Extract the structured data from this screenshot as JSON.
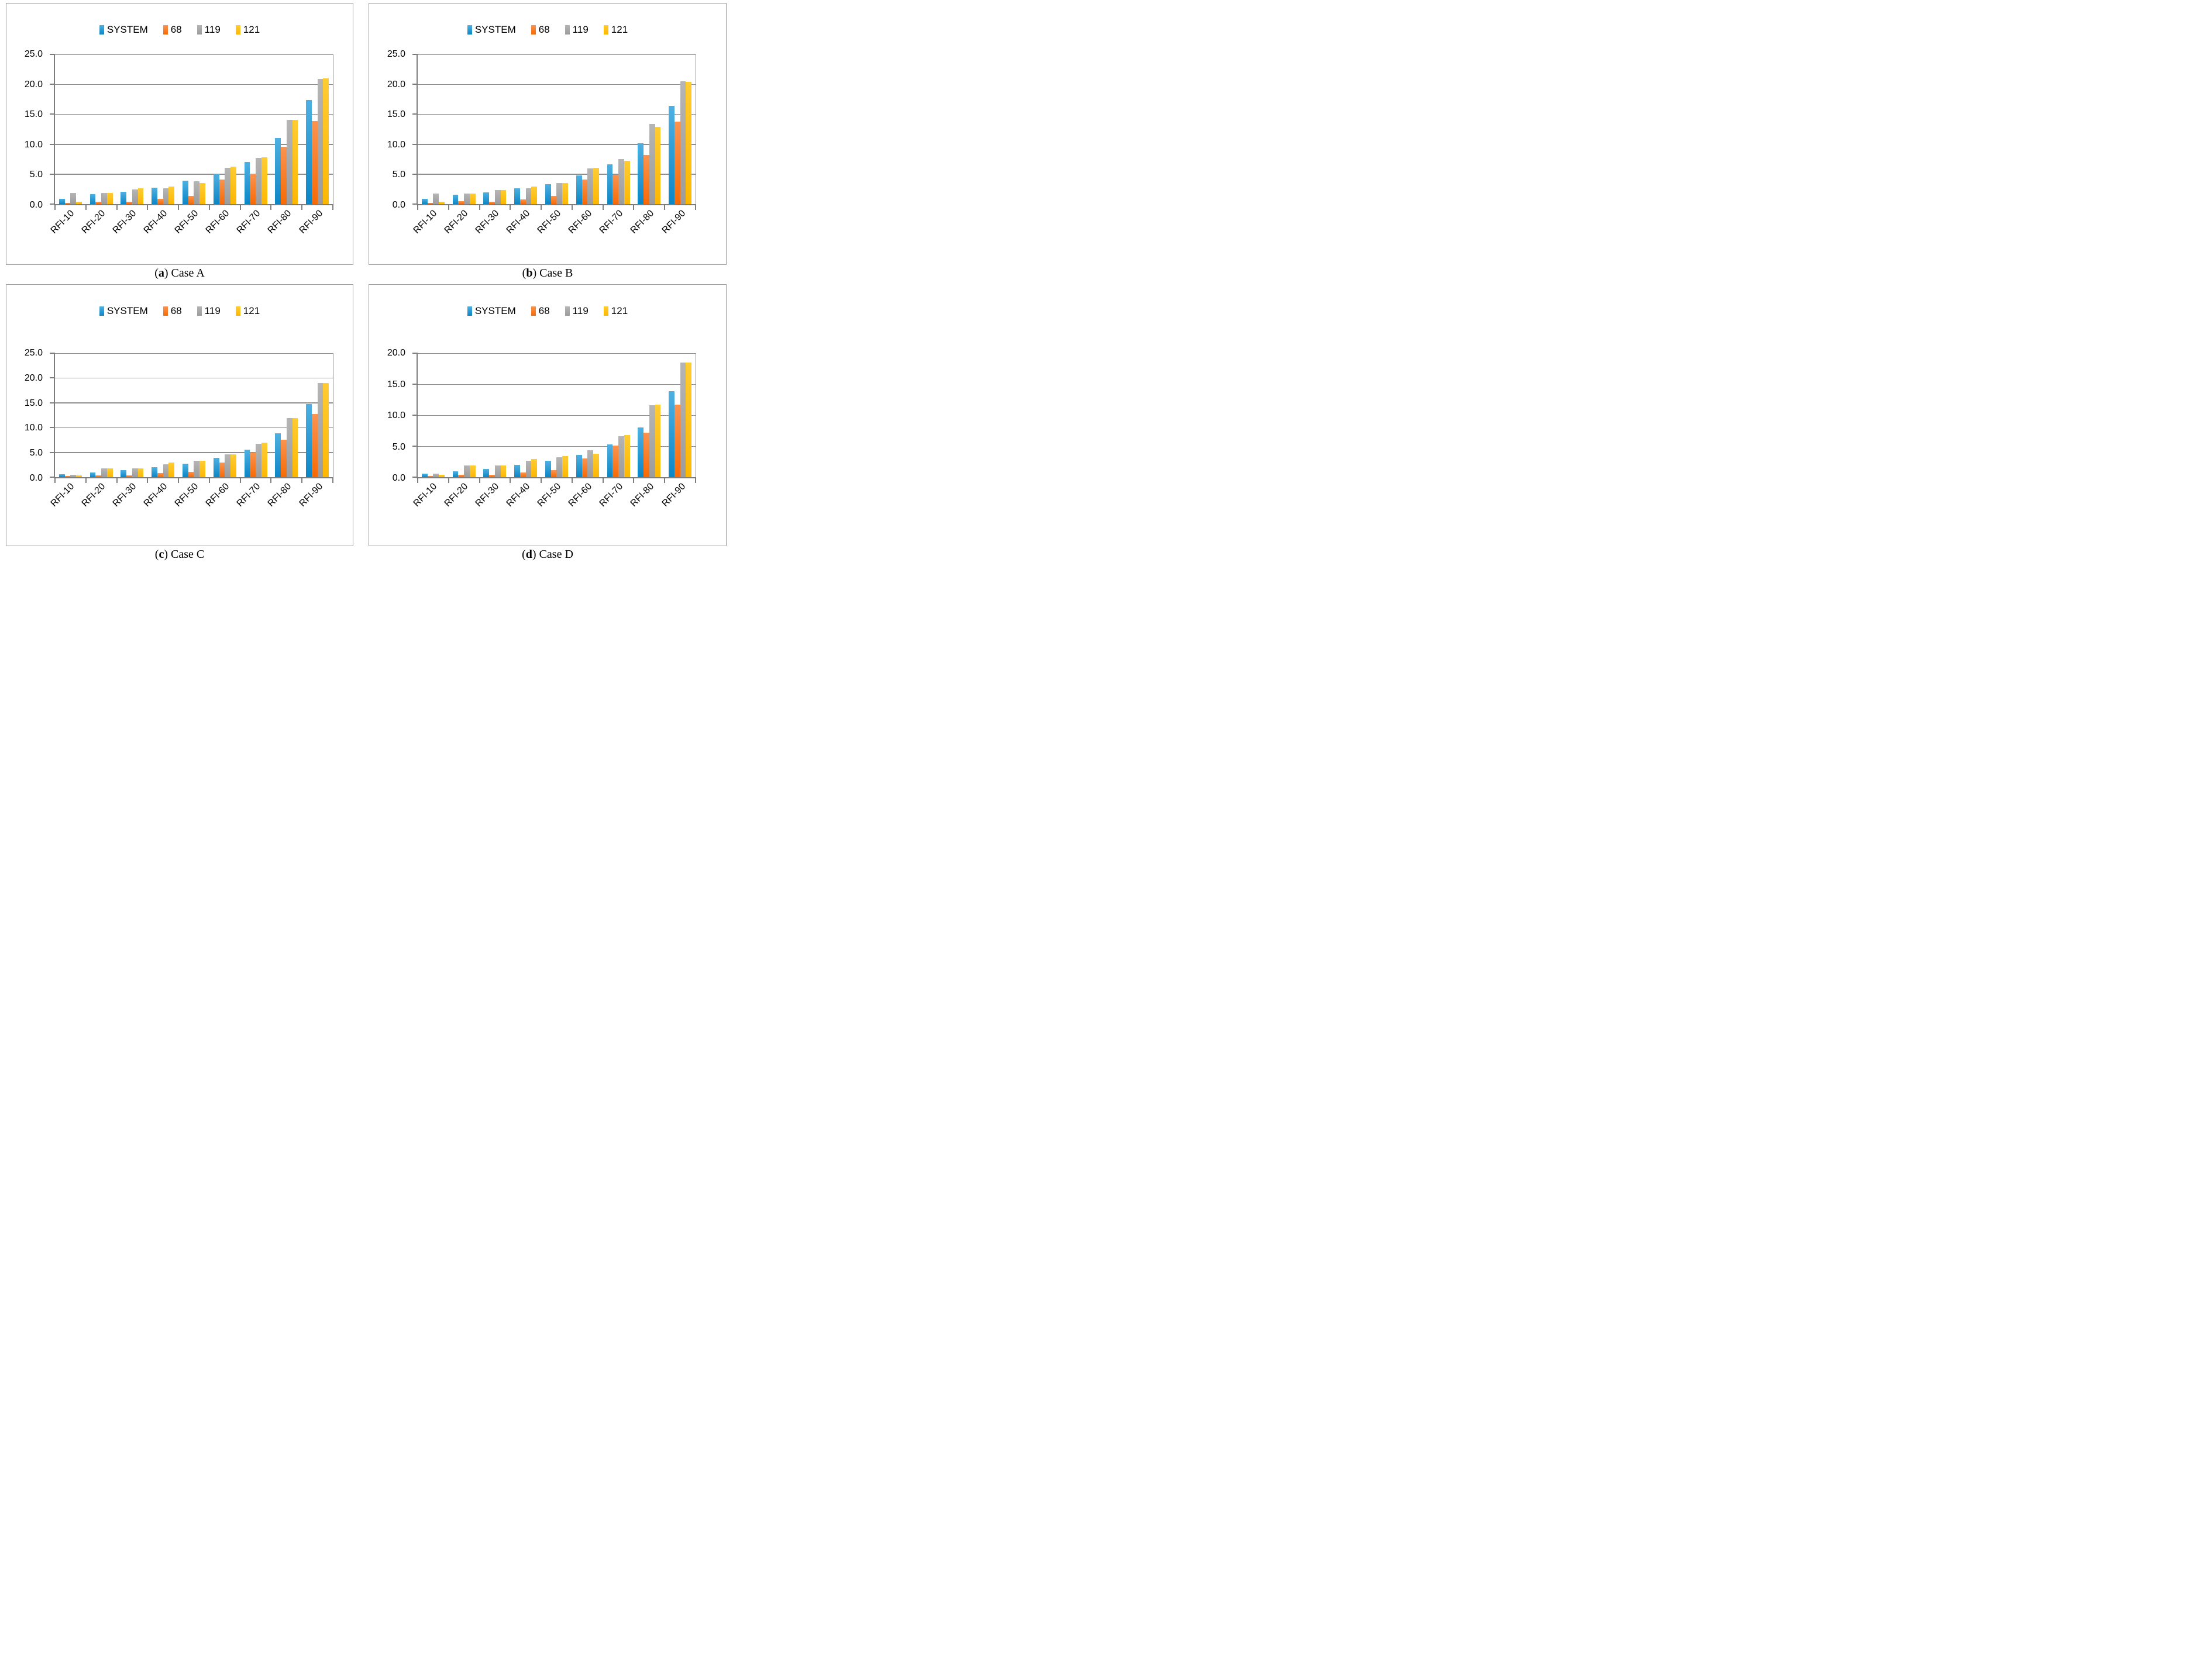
{
  "series_colors": {
    "SYSTEM": {
      "top": "#4fb0e1",
      "bottom": "#0c86c6"
    },
    "68": {
      "top": "#fa9450",
      "bottom": "#f76a05"
    },
    "119": {
      "top": "#b5b5b5",
      "bottom": "#9c9c9c"
    },
    "121": {
      "top": "#ffcc33",
      "bottom": "#fdb702"
    }
  },
  "style_colors": {
    "gridline": "#8f8f8f",
    "axis": "#7d7d7d",
    "panel_border": "#9e9e9e",
    "text": "#000000"
  },
  "chart_data": [
    {
      "type": "bar",
      "title": "(a) Case A",
      "caption_prefix": "(",
      "caption_letter": "a",
      "caption_rest": ") Case A",
      "xlabel": "",
      "ylabel": "",
      "ylim": [
        0,
        25
      ],
      "y_tick_step": 5,
      "y_tick_labels": [
        "25.0",
        "20.0",
        "15.0",
        "10.0",
        "5.0",
        "0.0"
      ],
      "grid": true,
      "legend_position": "top",
      "categories": [
        "RFI-10",
        "RFI-20",
        "RFI-30",
        "RFI-40",
        "RFI-50",
        "RFI-60",
        "RFI-70",
        "RFI-80",
        "RFI-90"
      ],
      "series": [
        {
          "name": "SYSTEM",
          "values": [
            0.9,
            1.7,
            2.1,
            2.7,
            3.9,
            5.1,
            7.0,
            11.0,
            17.4
          ]
        },
        {
          "name": "68",
          "values": [
            0.2,
            0.4,
            0.4,
            0.9,
            1.4,
            4.1,
            5.1,
            9.6,
            13.9
          ]
        },
        {
          "name": "119",
          "values": [
            1.9,
            1.9,
            2.4,
            2.6,
            3.8,
            6.1,
            7.7,
            14.1,
            20.9
          ]
        },
        {
          "name": "121",
          "values": [
            0.4,
            1.9,
            2.6,
            2.9,
            3.5,
            6.3,
            7.8,
            14.1,
            21.0
          ]
        }
      ]
    },
    {
      "type": "bar",
      "title": "(b) Case B",
      "caption_prefix": "(",
      "caption_letter": "b",
      "caption_rest": ") Case B",
      "xlabel": "",
      "ylabel": "",
      "ylim": [
        0,
        25
      ],
      "y_tick_step": 5,
      "y_tick_labels": [
        "25.0",
        "20.0",
        "15.0",
        "10.0",
        "5.0",
        "0.0"
      ],
      "grid": true,
      "legend_position": "top",
      "categories": [
        "RFI-10",
        "RFI-20",
        "RFI-30",
        "RFI-40",
        "RFI-50",
        "RFI-60",
        "RFI-70",
        "RFI-80",
        "RFI-90"
      ],
      "series": [
        {
          "name": "SYSTEM",
          "values": [
            0.9,
            1.6,
            2.0,
            2.6,
            3.3,
            4.8,
            6.6,
            10.2,
            16.4
          ]
        },
        {
          "name": "68",
          "values": [
            0.2,
            0.5,
            0.4,
            0.8,
            1.4,
            4.1,
            4.9,
            8.2,
            13.8
          ]
        },
        {
          "name": "119",
          "values": [
            1.8,
            1.8,
            2.3,
            2.6,
            3.5,
            6.0,
            7.5,
            13.4,
            20.5
          ]
        },
        {
          "name": "121",
          "values": [
            0.4,
            1.8,
            2.3,
            2.9,
            3.5,
            6.1,
            7.2,
            12.9,
            20.4
          ]
        }
      ]
    },
    {
      "type": "bar",
      "title": "(c) Case C",
      "caption_prefix": "(",
      "caption_letter": "c",
      "caption_rest": ") Case C",
      "xlabel": "",
      "ylabel": "",
      "ylim": [
        0,
        25
      ],
      "y_tick_step": 5,
      "y_tick_labels": [
        "25.0",
        "20.0",
        "15.0",
        "10.0",
        "5.0",
        "0.0"
      ],
      "grid": true,
      "legend_position": "top",
      "categories": [
        "RFI-10",
        "RFI-20",
        "RFI-30",
        "RFI-40",
        "RFI-50",
        "RFI-60",
        "RFI-70",
        "RFI-80",
        "RFI-90"
      ],
      "series": [
        {
          "name": "SYSTEM",
          "values": [
            0.6,
            0.9,
            1.4,
            2.0,
            2.7,
            3.9,
            5.6,
            8.8,
            14.7
          ]
        },
        {
          "name": "68",
          "values": [
            0.2,
            0.4,
            0.4,
            0.8,
            1.1,
            3.0,
            5.0,
            7.6,
            12.7
          ]
        },
        {
          "name": "119",
          "values": [
            0.5,
            1.8,
            1.8,
            2.6,
            3.3,
            4.6,
            6.7,
            11.9,
            19.0
          ]
        },
        {
          "name": "121",
          "values": [
            0.3,
            1.8,
            1.8,
            2.9,
            3.3,
            4.6,
            7.0,
            11.9,
            19.0
          ]
        }
      ]
    },
    {
      "type": "bar",
      "title": "(d) Case D",
      "caption_prefix": "(",
      "caption_letter": "d",
      "caption_rest": ") Case D",
      "xlabel": "",
      "ylabel": "",
      "ylim": [
        0,
        20
      ],
      "y_tick_step": 5,
      "y_tick_labels": [
        "20.0",
        "15.0",
        "10.0",
        "5.0",
        "0.0"
      ],
      "grid": true,
      "legend_position": "top",
      "categories": [
        "RFI-10",
        "RFI-20",
        "RFI-30",
        "RFI-40",
        "RFI-50",
        "RFI-60",
        "RFI-70",
        "RFI-80",
        "RFI-90"
      ],
      "series": [
        {
          "name": "SYSTEM",
          "values": [
            0.6,
            0.9,
            1.3,
            2.0,
            2.6,
            3.6,
            5.3,
            8.0,
            13.9
          ]
        },
        {
          "name": "68",
          "values": [
            0.2,
            0.4,
            0.4,
            0.8,
            1.1,
            3.0,
            5.1,
            7.2,
            11.7
          ]
        },
        {
          "name": "119",
          "values": [
            0.6,
            1.9,
            1.9,
            2.6,
            3.2,
            4.3,
            6.6,
            11.6,
            18.5
          ]
        },
        {
          "name": "121",
          "values": [
            0.4,
            1.9,
            1.9,
            2.9,
            3.4,
            3.8,
            6.8,
            11.7,
            18.5
          ]
        }
      ]
    }
  ]
}
